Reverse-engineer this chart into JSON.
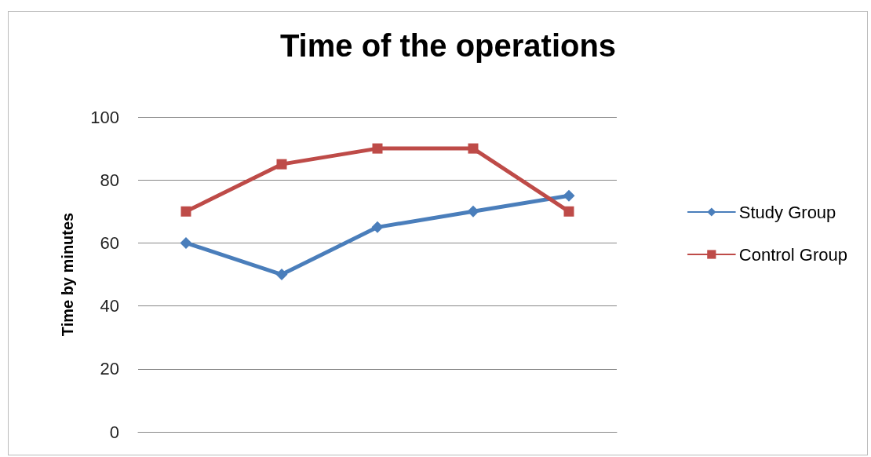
{
  "chart_data": {
    "type": "line",
    "title": "Time of the operations",
    "ylabel": "Time by minutes",
    "categories": [
      null,
      null,
      null,
      null,
      null
    ],
    "series": [
      {
        "name": "Study Group",
        "color": "#4a7ebb",
        "marker": "diamond",
        "values": [
          60,
          50,
          65,
          70,
          75
        ]
      },
      {
        "name": "Control Group",
        "color": "#be4b48",
        "marker": "square",
        "values": [
          70,
          85,
          90,
          90,
          70
        ]
      }
    ],
    "ylim": [
      0,
      100
    ],
    "yticks": [
      0,
      20,
      40,
      60,
      80,
      100
    ],
    "grid": "y",
    "legend": "right"
  }
}
